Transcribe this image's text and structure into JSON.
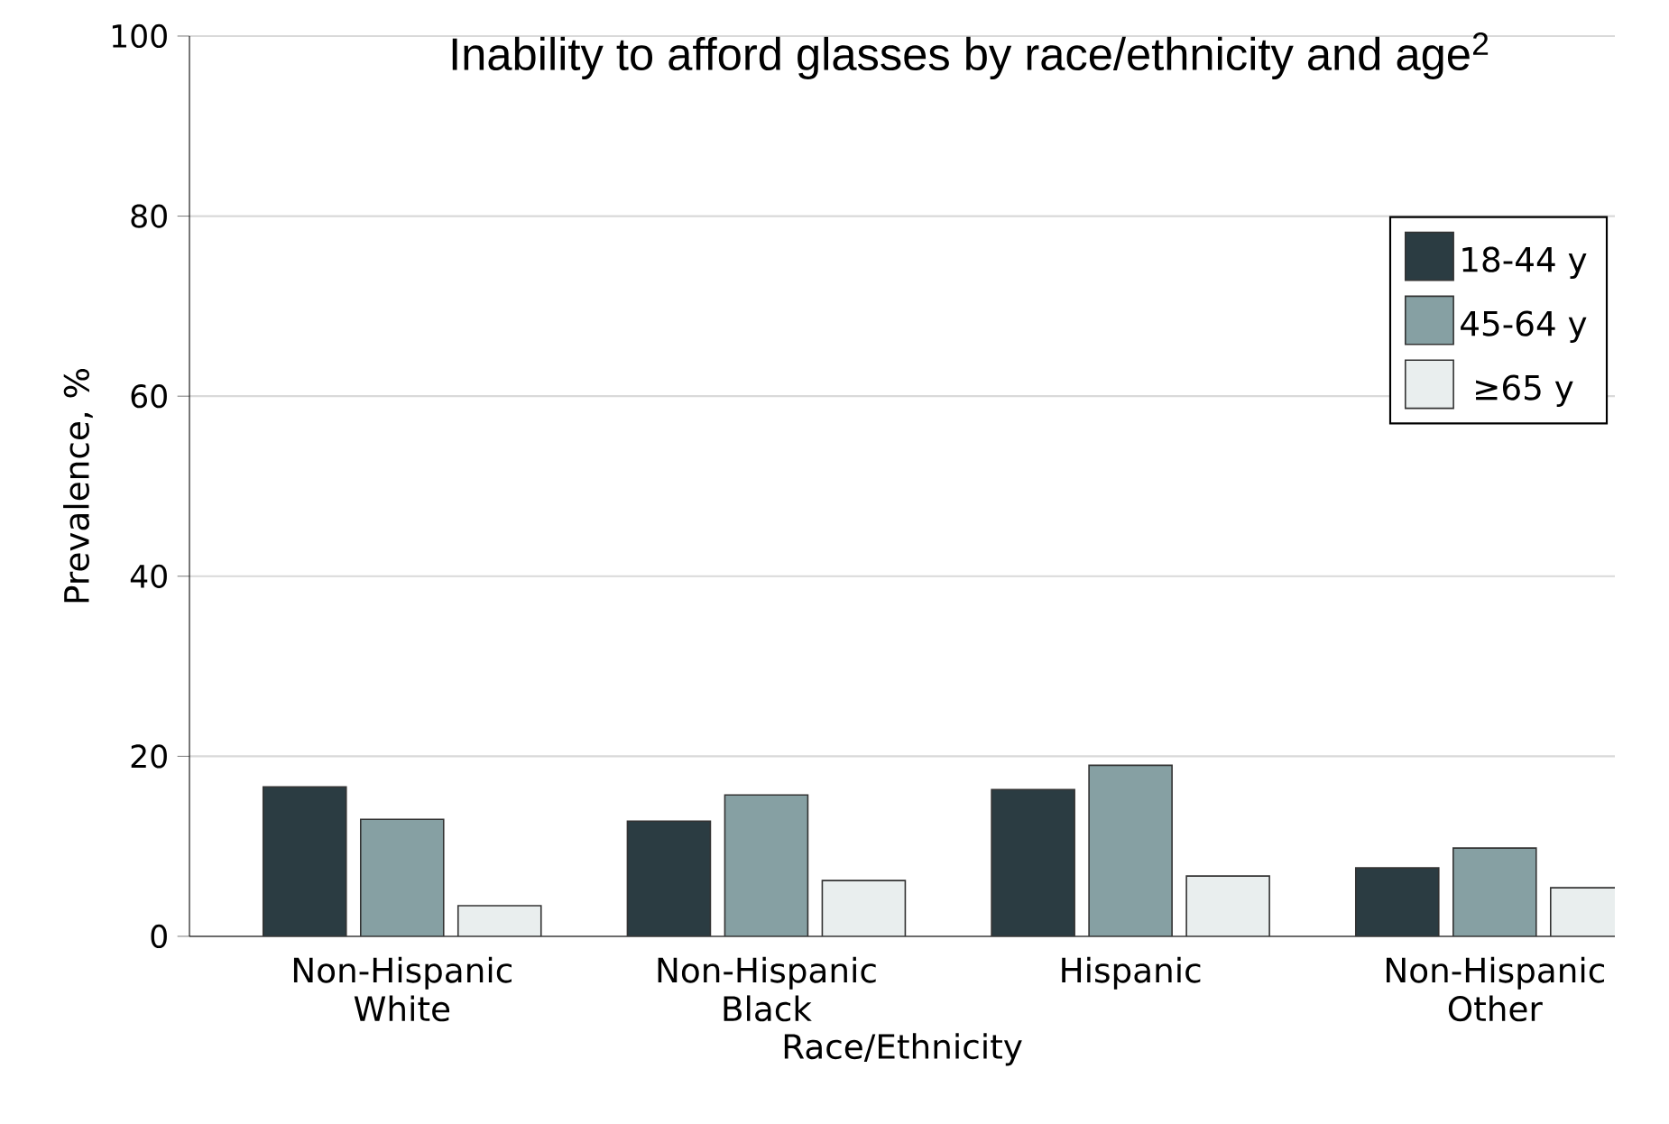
{
  "chart_data": {
    "type": "bar",
    "title": "Inability to afford glasses by race/ethnicity and age$^{2}$",
    "xlabel": "Race/Ethnicity",
    "ylabel": "Prevalence, %",
    "categories": [
      "Non-Hispanic White",
      "Non-Hispanic Black",
      "Hispanic",
      "Non-Hispanic Other"
    ],
    "series": [
      {
        "name": "18-44 y",
        "color": "#2b3c42",
        "values": [
          16.6,
          12.8,
          16.3,
          7.6
        ]
      },
      {
        "name": "45-64 y",
        "color": "#86a0a3",
        "values": [
          13.0,
          15.7,
          19.0,
          9.8
        ]
      },
      {
        "name": "≥65 y",
        "color": "#e9eeee",
        "values": [
          3.4,
          6.2,
          6.7,
          5.4
        ]
      }
    ],
    "ylim": [
      0,
      100
    ],
    "yticks": [
      0,
      20,
      40,
      60,
      80,
      100
    ],
    "grid": "y",
    "legend": "top right"
  }
}
